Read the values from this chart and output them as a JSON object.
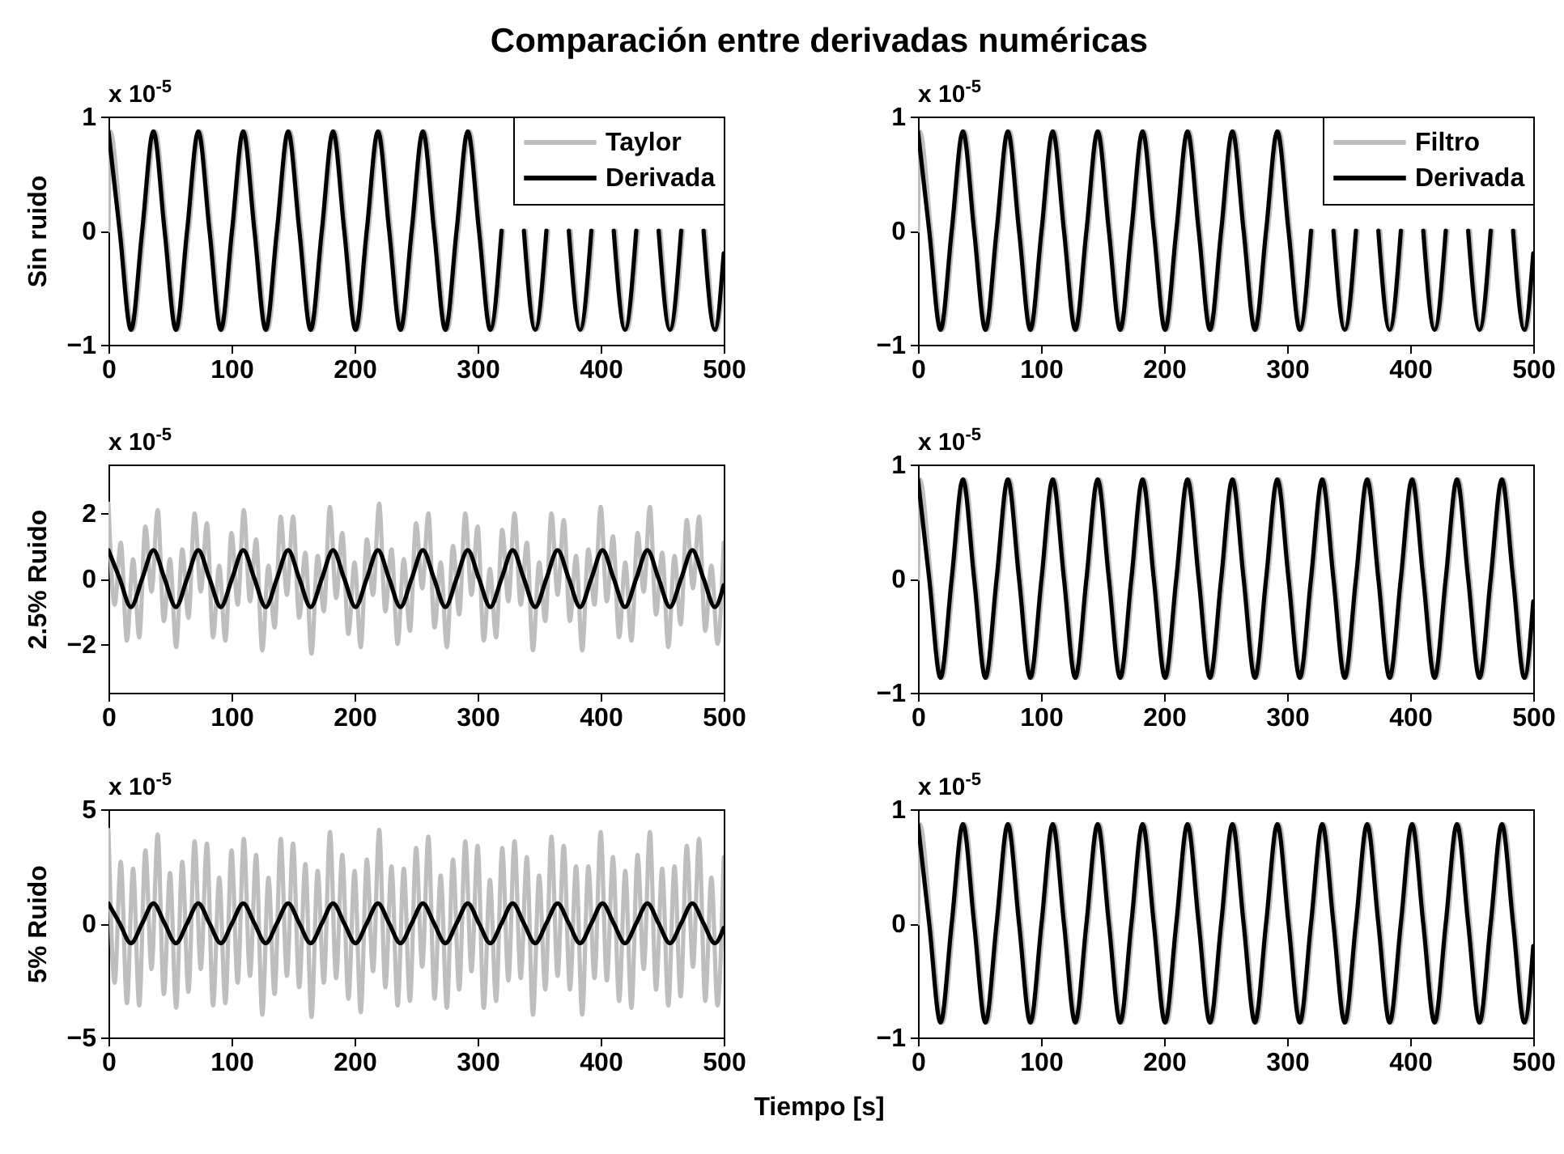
{
  "chart_data": [
    {
      "type": "line",
      "title": "Comparación entre derivadas numéricas",
      "ylabel": "Sin ruido",
      "annotations": [
        "x 10$^{-5}$"
      ],
      "xlim": [
        0,
        500
      ],
      "xticks": [
        0,
        100,
        200,
        300,
        400,
        500
      ],
      "ylim": [
        -1,
        1
      ],
      "yticks": [
        -1,
        0,
        1
      ],
      "legend": "top right",
      "x": [
        0,
        9.1,
        18.3,
        27.4,
        36.5,
        45.6,
        54.8,
        63.9,
        73,
        82.1,
        91.3,
        100.4,
        109.5,
        118.6,
        127.8,
        136.9,
        146,
        155.1,
        164.3,
        173.4,
        182.5,
        191.6,
        200.8,
        209.9,
        219,
        228.1,
        237.3,
        246.4,
        255.5,
        264.6,
        273.8,
        282.9,
        292,
        301.1,
        310.3,
        319.4,
        328.5,
        337.6,
        346.8,
        355.9,
        365,
        374.1,
        383.3,
        392.4,
        401.5,
        410.6,
        419.8,
        428.9,
        438,
        447.1,
        456.3,
        465.4,
        474.5,
        483.6,
        492.8,
        500
      ],
      "series": [
        {
          "name": "Taylor",
          "color": "#bebebe",
          "x": [
            0,
            1.5,
            10.6,
            19.8,
            28.9,
            38,
            47.1,
            56.3,
            65.4,
            74.5,
            83.6,
            92.8,
            101.9,
            111,
            120.1,
            129.3,
            138.4,
            147.5,
            156.6,
            165.8,
            174.9,
            184,
            193.1,
            202.3,
            211.4,
            220.5,
            229.6,
            238.8,
            247.9,
            257,
            266.1,
            275.3,
            284.4,
            293.5,
            302.6,
            311.8,
            320.9,
            330,
            339.1,
            348.3,
            357.4,
            366.5,
            375.6,
            384.8,
            393.9,
            403,
            412.1,
            421.3,
            430.4,
            439.5,
            448.6,
            457.8,
            466.9,
            476,
            485.1,
            494.3,
            500
          ],
          "values": [
            0,
            0.87,
            0,
            -0.87,
            0,
            0.87,
            0,
            -0.87,
            0,
            0.87,
            0,
            -0.87,
            0,
            0.87,
            0,
            -0.87,
            0,
            0.87,
            0,
            -0.87,
            0,
            0.87,
            0,
            -0.87,
            0,
            0.87,
            0,
            -0.87,
            0,
            0.87,
            0,
            -0.87,
            0,
            0.87,
            0,
            -0.87,
            0,
            null,
            0,
            -0.87,
            0,
            null,
            0,
            -0.87,
            0,
            null,
            0,
            -0.87,
            0,
            null,
            0,
            -0.87,
            0,
            null,
            0,
            -0.87,
            -0.35
          ]
        },
        {
          "name": "Derivada",
          "color": "#000000",
          "values": [
            0.87,
            0,
            -0.87,
            0,
            0.87,
            0,
            -0.87,
            0,
            0.87,
            0,
            -0.87,
            0,
            0.87,
            0,
            -0.87,
            0,
            0.87,
            0,
            -0.87,
            0,
            0.87,
            0,
            -0.87,
            0,
            0.87,
            0,
            -0.87,
            0,
            0.87,
            0,
            -0.87,
            0,
            0.87,
            0,
            -0.87,
            0,
            null,
            0,
            -0.87,
            0,
            null,
            0,
            -0.87,
            0,
            null,
            0,
            -0.87,
            0,
            null,
            0,
            -0.87,
            0,
            null,
            0,
            -0.87,
            -0.2
          ]
        }
      ]
    },
    {
      "type": "line",
      "annotations": [
        "x 10$^{-5}$"
      ],
      "xlim": [
        0,
        500
      ],
      "xticks": [
        0,
        100,
        200,
        300,
        400,
        500
      ],
      "ylim": [
        -1,
        1
      ],
      "yticks": [
        -1,
        0,
        1
      ],
      "legend": "top right",
      "x": [
        0,
        9.1,
        18.3,
        27.4,
        36.5,
        45.6,
        54.8,
        63.9,
        73,
        82.1,
        91.3,
        100.4,
        109.5,
        118.6,
        127.8,
        136.9,
        146,
        155.1,
        164.3,
        173.4,
        182.5,
        191.6,
        200.8,
        209.9,
        219,
        228.1,
        237.3,
        246.4,
        255.5,
        264.6,
        273.8,
        282.9,
        292,
        301.1,
        310.3,
        319.4,
        328.5,
        337.6,
        346.8,
        355.9,
        365,
        374.1,
        383.3,
        392.4,
        401.5,
        410.6,
        419.8,
        428.9,
        438,
        447.1,
        456.3,
        465.4,
        474.5,
        483.6,
        492.8,
        500
      ],
      "series": [
        {
          "name": "Filtro",
          "color": "#bebebe",
          "x": [
            0,
            1.5,
            10.6,
            19.8,
            28.9,
            38,
            47.1,
            56.3,
            65.4,
            74.5,
            83.6,
            92.8,
            101.9,
            111,
            120.1,
            129.3,
            138.4,
            147.5,
            156.6,
            165.8,
            174.9,
            184,
            193.1,
            202.3,
            211.4,
            220.5,
            229.6,
            238.8,
            247.9,
            257,
            266.1,
            275.3,
            284.4,
            293.5,
            302.6,
            311.8,
            320.9,
            330,
            339.1,
            348.3,
            357.4,
            366.5,
            375.6,
            384.8,
            393.9,
            403,
            412.1,
            421.3,
            430.4,
            439.5,
            448.6,
            457.8,
            466.9,
            476,
            485.1,
            494.3,
            500
          ],
          "values": [
            0,
            0.87,
            0,
            -0.87,
            0,
            0.87,
            0,
            -0.87,
            0,
            0.87,
            0,
            -0.87,
            0,
            0.87,
            0,
            -0.87,
            0,
            0.87,
            0,
            -0.87,
            0,
            0.87,
            0,
            -0.87,
            0,
            0.87,
            0,
            -0.87,
            0,
            0.87,
            0,
            -0.87,
            0,
            0.87,
            0,
            -0.87,
            0,
            null,
            0,
            -0.87,
            0,
            null,
            0,
            -0.87,
            0,
            null,
            0,
            -0.87,
            0,
            null,
            0,
            -0.87,
            0,
            null,
            0,
            -0.87,
            -0.35
          ]
        },
        {
          "name": "Derivada",
          "color": "#000000",
          "values": [
            0.87,
            0,
            -0.87,
            0,
            0.87,
            0,
            -0.87,
            0,
            0.87,
            0,
            -0.87,
            0,
            0.87,
            0,
            -0.87,
            0,
            0.87,
            0,
            -0.87,
            0,
            0.87,
            0,
            -0.87,
            0,
            0.87,
            0,
            -0.87,
            0,
            0.87,
            0,
            -0.87,
            0,
            0.87,
            0,
            -0.87,
            0,
            null,
            0,
            -0.87,
            0,
            null,
            0,
            -0.87,
            0,
            null,
            0,
            -0.87,
            0,
            null,
            0,
            -0.87,
            0,
            null,
            0,
            -0.87,
            -0.2
          ]
        }
      ]
    },
    {
      "type": "line",
      "ylabel": "2.5% Ruido",
      "annotations": [
        "x 10$^{-5}$"
      ],
      "xlim": [
        0,
        500
      ],
      "xticks": [
        0,
        100,
        200,
        300,
        400,
        500
      ],
      "ylim": [
        -3.5,
        3.5
      ],
      "yticks": [
        -2,
        0,
        2
      ],
      "x": [
        0,
        9.1,
        18.3,
        27.4,
        36.5,
        45.6,
        54.8,
        63.9,
        73,
        82.1,
        91.3,
        100.4,
        109.5,
        118.6,
        127.8,
        136.9,
        146,
        155.1,
        164.3,
        173.4,
        182.5,
        191.6,
        200.8,
        209.9,
        219,
        228.1,
        237.3,
        246.4,
        255.5,
        264.6,
        273.8,
        282.9,
        292,
        301.1,
        310.3,
        319.4,
        328.5,
        337.6,
        346.8,
        355.9,
        365,
        374.1,
        383.3,
        392.4,
        401.5,
        410.6,
        419.8,
        428.9,
        438,
        447.1,
        456.3,
        465.4,
        474.5,
        483.6,
        492.8,
        500
      ],
      "series": [
        {
          "color": "#bebebe",
          "x": [
            0,
            5,
            10,
            15,
            20,
            25,
            30,
            35,
            40,
            45,
            50,
            55,
            60,
            65,
            70,
            75,
            80,
            85,
            90,
            95,
            100,
            105,
            110,
            115,
            120,
            125,
            130,
            135,
            140,
            145,
            150,
            155,
            160,
            165,
            170,
            175,
            180,
            185,
            190,
            195,
            200,
            205,
            210,
            215,
            220,
            225,
            230,
            235,
            240,
            245,
            250,
            255,
            260,
            265,
            270,
            275,
            280,
            285,
            290,
            295,
            300,
            305,
            310,
            315,
            320,
            325,
            330,
            335,
            340,
            345,
            350,
            355,
            360,
            365,
            370,
            375,
            380,
            385,
            390,
            395,
            400,
            405,
            410,
            415,
            420,
            425,
            430,
            435,
            440,
            445,
            450,
            455,
            460,
            465,
            470,
            475,
            480,
            485,
            490,
            495,
            500
          ],
          "values": [
            2.3,
            -0.8,
            1.1,
            -1.9,
            0.6,
            -1.8,
            1.6,
            -0.4,
            2.1,
            -1.3,
            0.6,
            -2.1,
            0.9,
            -1.2,
            2.0,
            -0.4,
            1.7,
            -1.8,
            0.4,
            -1.9,
            1.4,
            -0.8,
            2.1,
            -0.7,
            1.2,
            -2.2,
            0.4,
            -1.5,
            1.9,
            -0.5,
            1.9,
            -1.2,
            0.8,
            -2.3,
            0.7,
            -1.0,
            2.2,
            -0.6,
            1.4,
            -1.7,
            0.5,
            -2.1,
            1.2,
            -0.5,
            2.3,
            -1.0,
            0.9,
            -2.0,
            0.6,
            -1.6,
            1.7,
            -0.3,
            2.0,
            -1.5,
            0.5,
            -2.1,
            1.0,
            -1.1,
            2.0,
            -0.5,
            1.6,
            -1.9,
            0.3,
            -1.8,
            1.5,
            -0.7,
            2.0,
            -0.8,
            1.1,
            -2.2,
            0.5,
            -1.3,
            2.0,
            -0.5,
            1.8,
            -1.3,
            0.7,
            -2.2,
            0.9,
            -0.8,
            2.2,
            -0.7,
            1.3,
            -1.8,
            0.5,
            -1.9,
            1.4,
            -0.4,
            2.2,
            -1.1,
            0.8,
            -2.1,
            0.7,
            -1.4,
            1.8,
            -0.3,
            1.9,
            -1.6,
            0.4,
            -2.0,
            1.1
          ]
        },
        {
          "color": "#000000",
          "values": [
            0.87,
            0,
            -0.87,
            0,
            0.87,
            0,
            -0.87,
            0,
            0.87,
            0,
            -0.87,
            0,
            0.87,
            0,
            -0.87,
            0,
            0.87,
            0,
            -0.87,
            0,
            0.87,
            0,
            -0.87,
            0,
            0.87,
            0,
            -0.87,
            0,
            0.87,
            0,
            -0.87,
            0,
            0.87,
            0,
            -0.87,
            0,
            0.87,
            0,
            -0.87,
            0,
            0.87,
            0,
            -0.87,
            0,
            0.87,
            0,
            -0.87,
            0,
            0.87,
            0,
            -0.87,
            0,
            0.87,
            0,
            -0.87,
            -0.2
          ]
        }
      ]
    },
    {
      "type": "line",
      "annotations": [
        "x 10$^{-5}$"
      ],
      "xlim": [
        0,
        500
      ],
      "xticks": [
        0,
        100,
        200,
        300,
        400,
        500
      ],
      "ylim": [
        -1,
        1
      ],
      "yticks": [
        -1,
        0,
        1
      ],
      "x": [
        0,
        9.1,
        18.3,
        27.4,
        36.5,
        45.6,
        54.8,
        63.9,
        73,
        82.1,
        91.3,
        100.4,
        109.5,
        118.6,
        127.8,
        136.9,
        146,
        155.1,
        164.3,
        173.4,
        182.5,
        191.6,
        200.8,
        209.9,
        219,
        228.1,
        237.3,
        246.4,
        255.5,
        264.6,
        273.8,
        282.9,
        292,
        301.1,
        310.3,
        319.4,
        328.5,
        337.6,
        346.8,
        355.9,
        365,
        374.1,
        383.3,
        392.4,
        401.5,
        410.6,
        419.8,
        428.9,
        438,
        447.1,
        456.3,
        465.4,
        474.5,
        483.6,
        492.8,
        500
      ],
      "series": [
        {
          "color": "#bebebe",
          "x": [
            0,
            1.5,
            10.6,
            19.8,
            28.9,
            38,
            47.1,
            56.3,
            65.4,
            74.5,
            83.6,
            92.8,
            101.9,
            111,
            120.1,
            129.3,
            138.4,
            147.5,
            156.6,
            165.8,
            174.9,
            184,
            193.1,
            202.3,
            211.4,
            220.5,
            229.6,
            238.8,
            247.9,
            257,
            266.1,
            275.3,
            284.4,
            293.5,
            302.6,
            311.8,
            320.9,
            330,
            339.1,
            348.3,
            357.4,
            366.5,
            375.6,
            384.8,
            393.9,
            403,
            412.1,
            421.3,
            430.4,
            439.5,
            448.6,
            457.8,
            466.9,
            476,
            485.1,
            494.3,
            500
          ],
          "values": [
            0,
            0.87,
            0,
            -0.87,
            0,
            0.87,
            0,
            -0.87,
            0,
            0.87,
            0,
            -0.87,
            0,
            0.87,
            0,
            -0.87,
            0,
            0.87,
            0,
            -0.87,
            0,
            0.87,
            0,
            -0.87,
            0,
            0.87,
            0,
            -0.87,
            0,
            0.87,
            0,
            -0.87,
            0,
            0.87,
            0,
            -0.87,
            0,
            0.87,
            0,
            -0.87,
            0,
            0.87,
            0,
            -0.87,
            0,
            0.87,
            0,
            -0.87,
            0,
            0.87,
            0,
            -0.87,
            0,
            0.87,
            0,
            -0.87,
            -0.35
          ]
        },
        {
          "color": "#000000",
          "values": [
            0.87,
            0,
            -0.87,
            0,
            0.87,
            0,
            -0.87,
            0,
            0.87,
            0,
            -0.87,
            0,
            0.87,
            0,
            -0.87,
            0,
            0.87,
            0,
            -0.87,
            0,
            0.87,
            0,
            -0.87,
            0,
            0.87,
            0,
            -0.87,
            0,
            0.87,
            0,
            -0.87,
            0,
            0.87,
            0,
            -0.87,
            0,
            0.87,
            0,
            -0.87,
            0,
            0.87,
            0,
            -0.87,
            0,
            0.87,
            0,
            -0.87,
            0,
            0.87,
            0,
            -0.87,
            0,
            0.87,
            0,
            -0.87,
            -0.2
          ]
        }
      ]
    },
    {
      "type": "line",
      "xlabel": "Tiempo [s]",
      "ylabel": "5% Ruido",
      "annotations": [
        "x 10$^{-5}$"
      ],
      "xlim": [
        0,
        500
      ],
      "xticks": [
        0,
        100,
        200,
        300,
        400,
        500
      ],
      "ylim": [
        -5,
        5
      ],
      "yticks": [
        -5,
        0,
        5
      ],
      "x": [
        0,
        9.1,
        18.3,
        27.4,
        36.5,
        45.6,
        54.8,
        63.9,
        73,
        82.1,
        91.3,
        100.4,
        109.5,
        118.6,
        127.8,
        136.9,
        146,
        155.1,
        164.3,
        173.4,
        182.5,
        191.6,
        200.8,
        209.9,
        219,
        228.1,
        237.3,
        246.4,
        255.5,
        264.6,
        273.8,
        282.9,
        292,
        301.1,
        310.3,
        319.4,
        328.5,
        337.6,
        346.8,
        355.9,
        365,
        374.1,
        383.3,
        392.4,
        401.5,
        410.6,
        419.8,
        428.9,
        438,
        447.1,
        456.3,
        465.4,
        474.5,
        483.6,
        492.8,
        500
      ],
      "series": [
        {
          "color": "#bebebe",
          "x": [
            0,
            5,
            10,
            15,
            20,
            25,
            30,
            35,
            40,
            45,
            50,
            55,
            60,
            65,
            70,
            75,
            80,
            85,
            90,
            95,
            100,
            105,
            110,
            115,
            120,
            125,
            130,
            135,
            140,
            145,
            150,
            155,
            160,
            165,
            170,
            175,
            180,
            185,
            190,
            195,
            200,
            205,
            210,
            215,
            220,
            225,
            230,
            235,
            240,
            245,
            250,
            255,
            260,
            265,
            270,
            275,
            280,
            285,
            290,
            295,
            300,
            305,
            310,
            315,
            320,
            325,
            330,
            335,
            340,
            345,
            350,
            355,
            360,
            365,
            370,
            375,
            380,
            385,
            390,
            395,
            400,
            405,
            410,
            415,
            420,
            425,
            430,
            435,
            440,
            445,
            450,
            455,
            460,
            465,
            470,
            475,
            480,
            485,
            490,
            495,
            500
          ],
          "values": [
            4.1,
            -2.6,
            2.7,
            -3.5,
            2.4,
            -3.6,
            3.2,
            -2.0,
            3.9,
            -3.1,
            2.2,
            -3.7,
            2.7,
            -3.0,
            3.6,
            -2.0,
            3.5,
            -3.6,
            2.0,
            -3.5,
            3.2,
            -2.6,
            3.7,
            -2.3,
            3.0,
            -4.0,
            2.0,
            -3.1,
            3.7,
            -2.3,
            3.5,
            -2.8,
            2.6,
            -4.1,
            2.3,
            -2.6,
            4.0,
            -2.4,
            3.0,
            -3.3,
            2.3,
            -3.9,
            2.8,
            -2.1,
            4.1,
            -2.8,
            2.5,
            -3.6,
            2.4,
            -3.4,
            3.3,
            -1.9,
            3.8,
            -3.3,
            2.1,
            -3.7,
            2.8,
            -2.9,
            3.6,
            -2.1,
            3.4,
            -3.7,
            1.9,
            -3.4,
            3.3,
            -2.5,
            3.6,
            -2.4,
            2.9,
            -4.0,
            2.1,
            -2.9,
            3.8,
            -2.3,
            3.4,
            -2.9,
            2.5,
            -4.0,
            2.5,
            -2.4,
            4.0,
            -2.5,
            2.9,
            -3.4,
            2.3,
            -3.7,
            3.0,
            -2.0,
            4.0,
            -2.9,
            2.4,
            -3.6,
            2.5,
            -3.2,
            3.4,
            -1.9,
            3.7,
            -3.4,
            2.0,
            -3.6,
            2.9
          ]
        },
        {
          "color": "#000000",
          "values": [
            0.87,
            0,
            -0.87,
            0,
            0.87,
            0,
            -0.87,
            0,
            0.87,
            0,
            -0.87,
            0,
            0.87,
            0,
            -0.87,
            0,
            0.87,
            0,
            -0.87,
            0,
            0.87,
            0,
            -0.87,
            0,
            0.87,
            0,
            -0.87,
            0,
            0.87,
            0,
            -0.87,
            0,
            0.87,
            0,
            -0.87,
            0,
            0.87,
            0,
            -0.87,
            0,
            0.87,
            0,
            -0.87,
            0,
            0.87,
            0,
            -0.87,
            0,
            0.87,
            0,
            -0.87,
            0,
            0.87,
            0,
            -0.87,
            -0.2
          ]
        }
      ]
    },
    {
      "type": "line",
      "annotations": [
        "x 10$^{-5}$"
      ],
      "xlim": [
        0,
        500
      ],
      "xticks": [
        0,
        100,
        200,
        300,
        400,
        500
      ],
      "ylim": [
        -1,
        1
      ],
      "yticks": [
        -1,
        0,
        1
      ],
      "x": [
        0,
        9.1,
        18.3,
        27.4,
        36.5,
        45.6,
        54.8,
        63.9,
        73,
        82.1,
        91.3,
        100.4,
        109.5,
        118.6,
        127.8,
        136.9,
        146,
        155.1,
        164.3,
        173.4,
        182.5,
        191.6,
        200.8,
        209.9,
        219,
        228.1,
        237.3,
        246.4,
        255.5,
        264.6,
        273.8,
        282.9,
        292,
        301.1,
        310.3,
        319.4,
        328.5,
        337.6,
        346.8,
        355.9,
        365,
        374.1,
        383.3,
        392.4,
        401.5,
        410.6,
        419.8,
        428.9,
        438,
        447.1,
        456.3,
        465.4,
        474.5,
        483.6,
        492.8,
        500
      ],
      "series": [
        {
          "color": "#bebebe",
          "x": [
            0,
            1.5,
            10.6,
            19.8,
            28.9,
            38,
            47.1,
            56.3,
            65.4,
            74.5,
            83.6,
            92.8,
            101.9,
            111,
            120.1,
            129.3,
            138.4,
            147.5,
            156.6,
            165.8,
            174.9,
            184,
            193.1,
            202.3,
            211.4,
            220.5,
            229.6,
            238.8,
            247.9,
            257,
            266.1,
            275.3,
            284.4,
            293.5,
            302.6,
            311.8,
            320.9,
            330,
            339.1,
            348.3,
            357.4,
            366.5,
            375.6,
            384.8,
            393.9,
            403,
            412.1,
            421.3,
            430.4,
            439.5,
            448.6,
            457.8,
            466.9,
            476,
            485.1,
            494.3,
            500
          ],
          "values": [
            0,
            0.87,
            0,
            -0.87,
            0,
            0.87,
            0,
            -0.87,
            0,
            0.87,
            0,
            -0.87,
            0,
            0.87,
            0,
            -0.87,
            0,
            0.87,
            0,
            -0.87,
            0,
            0.87,
            0,
            -0.87,
            0,
            0.87,
            0,
            -0.87,
            0,
            0.87,
            0,
            -0.87,
            0,
            0.87,
            0,
            -0.87,
            0,
            0.87,
            0,
            -0.87,
            0,
            0.87,
            0,
            -0.87,
            0,
            0.87,
            0,
            -0.87,
            0,
            0.87,
            0,
            -0.87,
            0,
            0.87,
            0,
            -0.87,
            -0.35
          ]
        },
        {
          "color": "#000000",
          "values": [
            0.87,
            0,
            -0.87,
            0,
            0.87,
            0,
            -0.87,
            0,
            0.87,
            0,
            -0.87,
            0,
            0.87,
            0,
            -0.87,
            0,
            0.87,
            0,
            -0.87,
            0,
            0.87,
            0,
            -0.87,
            0,
            0.87,
            0,
            -0.87,
            0,
            0.87,
            0,
            -0.87,
            0,
            0.87,
            0,
            -0.87,
            0,
            0.87,
            0,
            -0.87,
            0,
            0.87,
            0,
            -0.87,
            0,
            0.87,
            0,
            -0.87,
            0,
            0.87,
            0,
            -0.87,
            0,
            0.87,
            0,
            -0.87,
            -0.2
          ]
        }
      ]
    }
  ]
}
